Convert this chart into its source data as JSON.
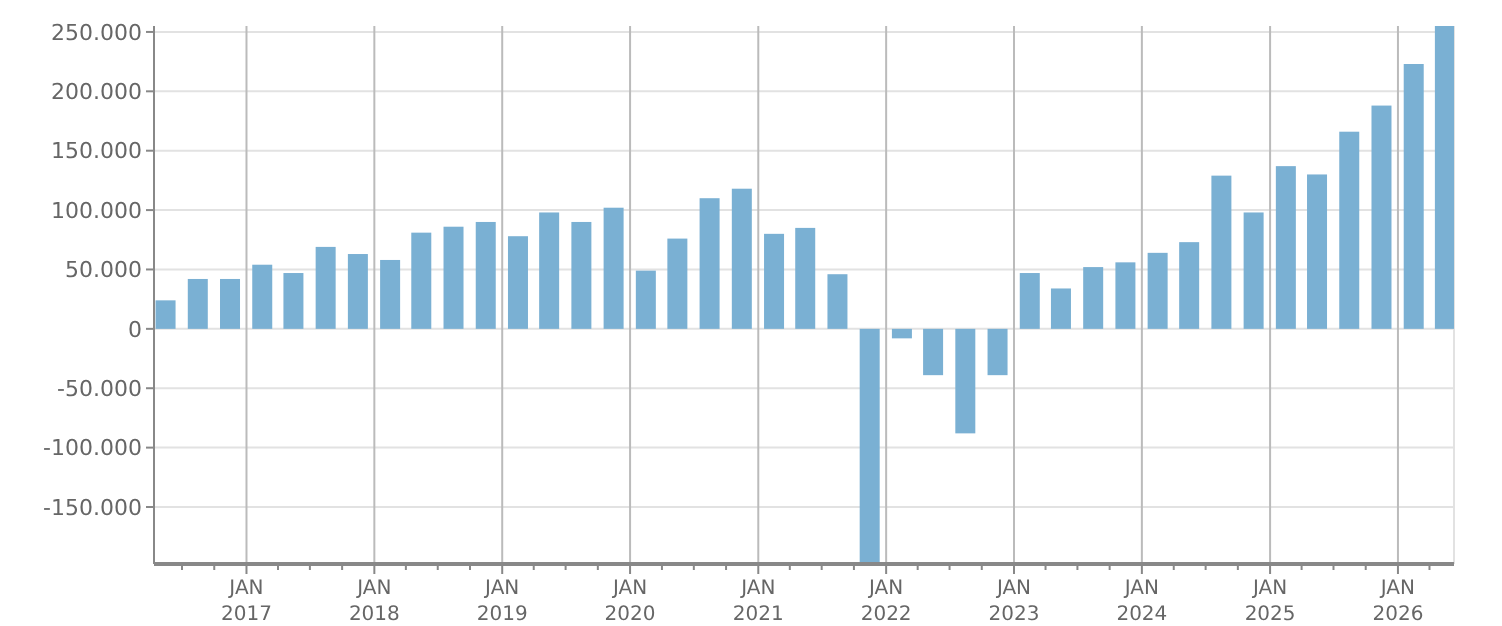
{
  "chart_data": {
    "type": "bar",
    "color": "#7ab0d3",
    "x": [
      "2016-05-15",
      "2016-08-15",
      "2016-11-15",
      "2017-02-15",
      "2017-05-15",
      "2017-08-15",
      "2017-11-15",
      "2018-02-15",
      "2018-05-15",
      "2018-08-15",
      "2018-11-15",
      "2019-02-15",
      "2019-05-15",
      "2019-08-15",
      "2019-11-15",
      "2020-02-15",
      "2020-05-15",
      "2020-08-15",
      "2020-11-15",
      "2021-02-15",
      "2021-05-15",
      "2021-08-15",
      "2021-11-15",
      "2022-02-15",
      "2022-05-15",
      "2022-08-15",
      "2022-11-15",
      "2023-02-15",
      "2023-05-15",
      "2023-08-15",
      "2023-11-15",
      "2024-02-15",
      "2024-05-15",
      "2024-08-15",
      "2024-11-15",
      "2025-02-15",
      "2025-05-15",
      "2025-08-15",
      "2025-11-15",
      "2026-02-15",
      "2026-05-15"
    ],
    "values": [
      24000,
      42000,
      42000,
      54000,
      47000,
      69000,
      63000,
      58000,
      81000,
      86000,
      90000,
      78000,
      98000,
      90000,
      102000,
      49000,
      76000,
      110000,
      118000,
      80000,
      85000,
      46000,
      -198000,
      -8000,
      -39000,
      -88000,
      -39000,
      47000,
      34000,
      52000,
      56000,
      64000,
      73000,
      129000,
      98000,
      137000,
      130000,
      166000,
      188000,
      223000,
      255000
    ],
    "xlim": [
      "2016-04-12",
      "2026-06-10"
    ],
    "ylim": [
      -198000,
      255000
    ],
    "yticks": [
      {
        "value": -150000,
        "label": "-150.000"
      },
      {
        "value": -100000,
        "label": "-100.000"
      },
      {
        "value": -50000,
        "label": "-50.000"
      },
      0,
      {
        "value": 50000,
        "label": "50.000"
      },
      {
        "value": 100000,
        "label": "100.000"
      },
      {
        "value": 150000,
        "label": "150.000"
      },
      {
        "value": 200000,
        "label": "200.000"
      },
      {
        "value": 250000,
        "label": "250.000"
      }
    ],
    "xticks": [
      {
        "value": "2016-07",
        "label": null
      },
      {
        "value": "2016-10",
        "label": null
      },
      {
        "value": "2017-01",
        "label": "JAN 2017"
      },
      {
        "value": "2017-04",
        "label": null
      },
      {
        "value": "2017-07",
        "label": null
      },
      {
        "value": "2017-10",
        "label": null
      },
      {
        "value": "2018-01",
        "label": "JAN 2018"
      },
      {
        "value": "2018-04",
        "label": null
      },
      {
        "value": "2018-07",
        "label": null
      },
      {
        "value": "2018-10",
        "label": null
      },
      {
        "value": "2019-01",
        "label": "JAN 2019"
      },
      {
        "value": "2019-04",
        "label": null
      },
      {
        "value": "2019-07",
        "label": null
      },
      {
        "value": "2019-10",
        "label": null
      },
      {
        "value": "2020-01",
        "label": "JAN 2020"
      },
      {
        "value": "2020-04",
        "label": null
      },
      {
        "value": "2020-07",
        "label": null
      },
      {
        "value": "2020-10",
        "label": null
      },
      {
        "value": "2021-01",
        "label": "JAN 2021"
      },
      {
        "value": "2021-04",
        "label": null
      },
      {
        "value": "2021-07",
        "label": null
      },
      {
        "value": "2021-10",
        "label": null
      },
      {
        "value": "2022-01",
        "label": "JAN 2022"
      },
      {
        "value": "2022-04",
        "label": null
      },
      {
        "value": "2022-07",
        "label": null
      },
      {
        "value": "2022-10",
        "label": null
      },
      {
        "value": "2023-01",
        "label": "JAN 2023"
      },
      {
        "value": "2023-04",
        "label": null
      },
      {
        "value": "2023-07",
        "label": null
      },
      {
        "value": "2023-10",
        "label": null
      },
      {
        "value": "2024-01",
        "label": "JAN 2024"
      },
      {
        "value": "2024-04",
        "label": null
      },
      {
        "value": "2024-07",
        "label": null
      },
      {
        "value": "2024-10",
        "label": null
      },
      {
        "value": "2025-01",
        "label": "JAN 2025"
      },
      {
        "value": "2025-04",
        "label": null
      },
      {
        "value": "2025-07",
        "label": null
      },
      {
        "value": "2025-10",
        "label": null
      },
      {
        "value": "2026-01",
        "label": "JAN 2026"
      },
      {
        "value": "2026-04",
        "label": null
      }
    ],
    "grid": true
  }
}
